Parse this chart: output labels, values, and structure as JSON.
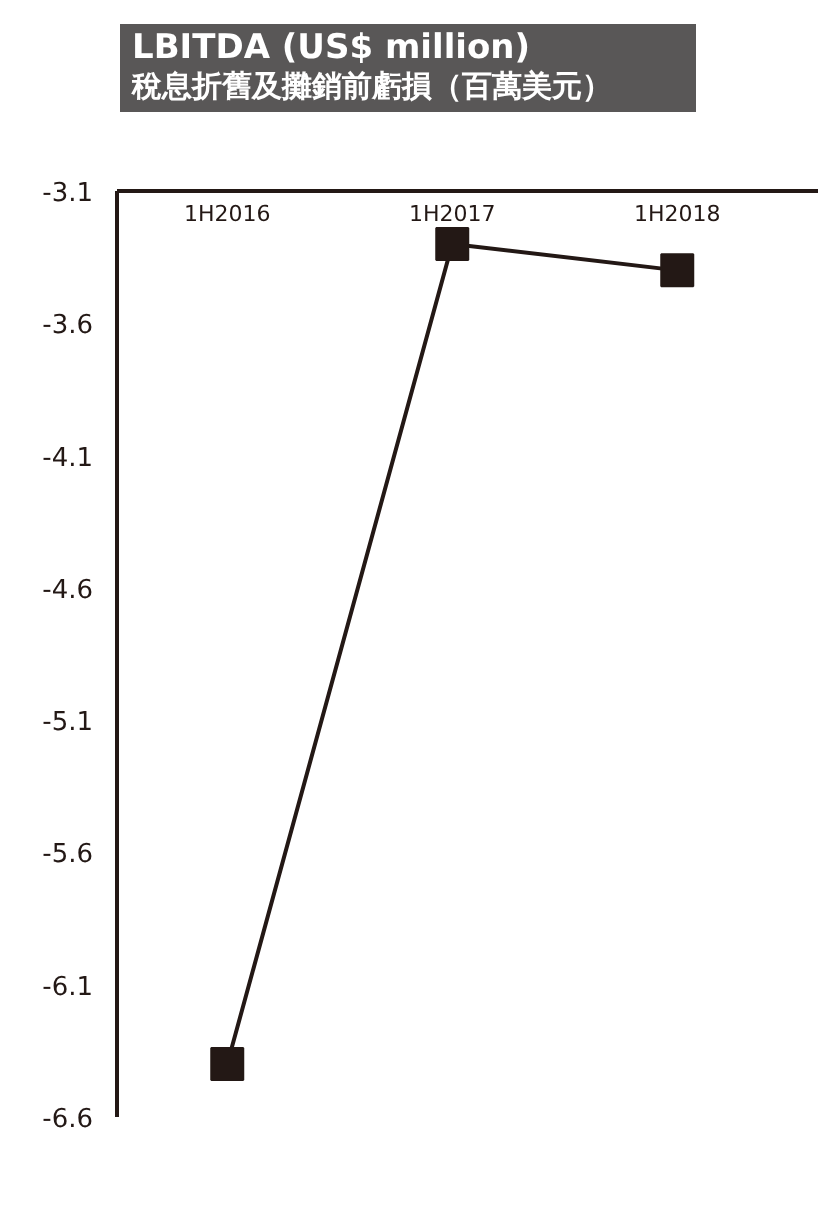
{
  "chart_data": {
    "type": "line",
    "title": "LBITDA (US$ million)",
    "subtitle": "稅息折舊及攤銷前虧損（百萬美元）",
    "categories": [
      "1H2016",
      "1H2017",
      "1H2018"
    ],
    "series": [
      {
        "color": "#231815",
        "values": [
          -6.4,
          -3.3,
          -3.4
        ]
      }
    ],
    "ylim": [
      -6.6,
      -3.1
    ],
    "yticks": [
      -3.1,
      -3.6,
      -4.1,
      -4.6,
      -5.1,
      -5.6,
      -6.1,
      -6.6
    ],
    "marker": "square",
    "line_style": "solid",
    "grid": false
  }
}
